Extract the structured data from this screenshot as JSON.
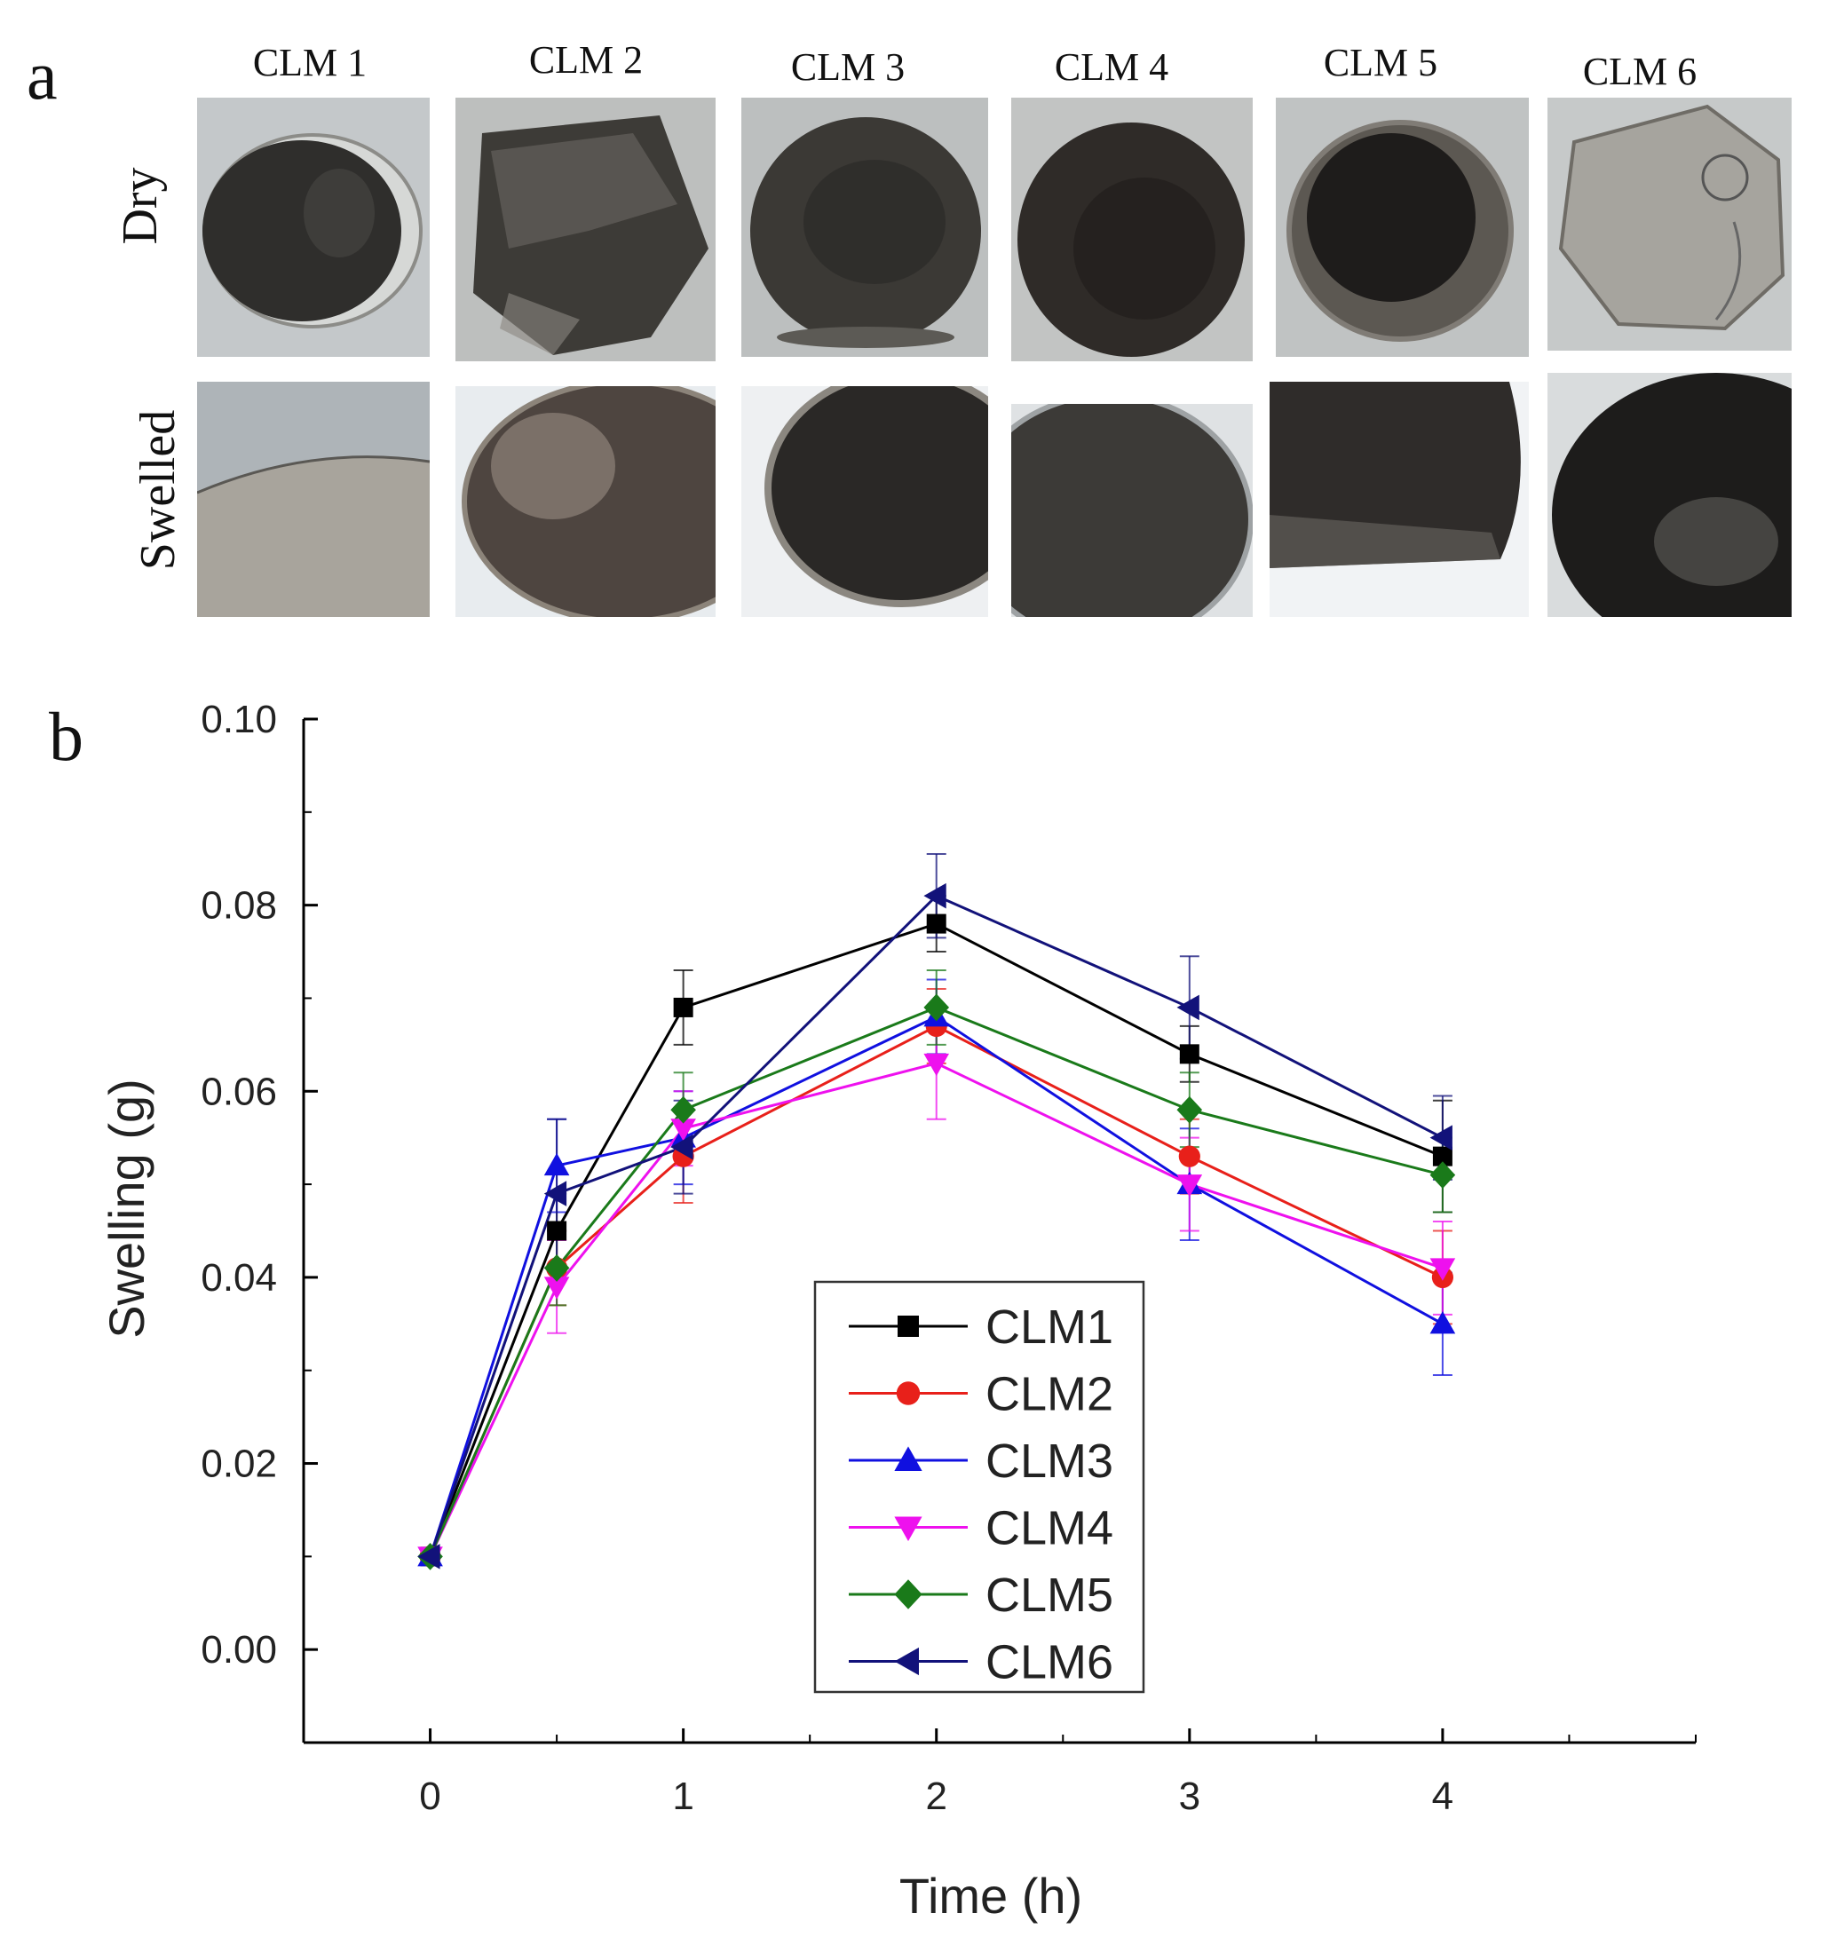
{
  "panel_a": {
    "letter": "a",
    "columns": [
      "CLM 1",
      "CLM 2",
      "CLM 3",
      "CLM 4",
      "CLM 5",
      "CLM 6"
    ],
    "rows": [
      "Dry",
      "Swelled"
    ],
    "colors": {
      "dry_background": "#bfc3c4",
      "swelled_background": "#e6e8ea",
      "particle_dark": "#2a2826",
      "particle_mid": "#4a4640",
      "particle_light": "#b8b6b0"
    }
  },
  "panel_b": {
    "letter": "b"
  },
  "chart_data": {
    "type": "line",
    "title": "",
    "xlabel": "Time (h)",
    "ylabel": "Swelling (g)",
    "xlim": [
      -0.5,
      5.0
    ],
    "ylim": [
      -0.01,
      0.1
    ],
    "xticks": [
      0,
      1,
      2,
      3,
      4
    ],
    "yticks": [
      0.0,
      0.02,
      0.04,
      0.06,
      0.08,
      0.1
    ],
    "xtick_labels": [
      "0",
      "1",
      "2",
      "3",
      "4"
    ],
    "ytick_labels": [
      "0.00",
      "0.02",
      "0.04",
      "0.06",
      "0.08",
      "0.10"
    ],
    "grid": false,
    "legend_position": "center",
    "x": [
      0,
      0.5,
      1,
      2,
      3,
      4
    ],
    "series": [
      {
        "name": "CLM1",
        "color": "#000000",
        "marker": "square",
        "values": [
          0.01,
          0.045,
          0.069,
          0.078,
          0.064,
          0.053
        ],
        "errors": [
          0.0005,
          0.004,
          0.004,
          0.003,
          0.003,
          0.006
        ]
      },
      {
        "name": "CLM2",
        "color": "#e8201a",
        "marker": "circle",
        "values": [
          0.01,
          0.041,
          0.053,
          0.067,
          0.053,
          0.04
        ],
        "errors": [
          0.0005,
          0.004,
          0.005,
          0.004,
          0.004,
          0.005
        ]
      },
      {
        "name": "CLM3",
        "color": "#1010e0",
        "marker": "triangle-up",
        "values": [
          0.01,
          0.052,
          0.055,
          0.068,
          0.05,
          0.035
        ],
        "errors": [
          0.0005,
          0.005,
          0.005,
          0.004,
          0.006,
          0.0055
        ]
      },
      {
        "name": "CLM4",
        "color": "#ee11ee",
        "marker": "triangle-down",
        "values": [
          0.01,
          0.039,
          0.056,
          0.063,
          0.05,
          0.041
        ],
        "errors": [
          0.0005,
          0.005,
          0.004,
          0.006,
          0.005,
          0.005
        ]
      },
      {
        "name": "CLM5",
        "color": "#1a7a1a",
        "marker": "diamond",
        "values": [
          0.01,
          0.041,
          0.058,
          0.069,
          0.058,
          0.051
        ],
        "errors": [
          0.0005,
          0.004,
          0.004,
          0.004,
          0.004,
          0.004
        ]
      },
      {
        "name": "CLM6",
        "color": "#12127a",
        "marker": "triangle-left",
        "values": [
          0.01,
          0.049,
          0.054,
          0.081,
          0.069,
          0.055
        ],
        "errors": [
          0.0005,
          0.008,
          0.005,
          0.0045,
          0.0055,
          0.0045
        ]
      }
    ]
  }
}
